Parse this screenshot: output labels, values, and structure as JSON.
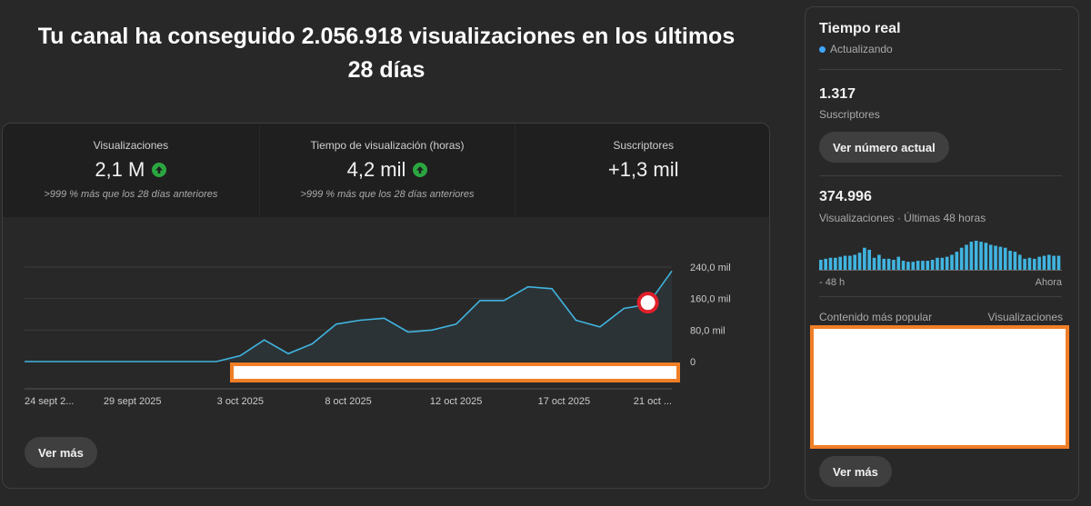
{
  "headline": "Tu canal ha conseguido 2.056.918 visualizaciones en los últimos 28 días",
  "metrics": [
    {
      "label": "Visualizaciones",
      "value": "2,1 M",
      "up": true,
      "sub": ">999 % más que los 28 días anteriores"
    },
    {
      "label": "Tiempo de visualización (horas)",
      "value": "4,2 mil",
      "up": true,
      "sub": ">999 % más que los 28 días anteriores"
    },
    {
      "label": "Suscriptores",
      "value": "+1,3 mil",
      "up": false,
      "sub": ""
    }
  ],
  "chart_data": {
    "type": "area",
    "ylim": [
      0,
      240000
    ],
    "y_ticks": [
      {
        "value": 0,
        "label": "0"
      },
      {
        "value": 80000,
        "label": "80,0 mil"
      },
      {
        "value": 160000,
        "label": "160,0 mil"
      },
      {
        "value": 240000,
        "label": "240,0 mil"
      }
    ],
    "x_tick_labels": [
      "24 sept 2...",
      "29 sept 2025",
      "3 oct 2025",
      "8 oct 2025",
      "12 oct 2025",
      "17 oct 2025",
      "21 oct ..."
    ],
    "series": [
      {
        "values": [
          0,
          0,
          0,
          0,
          0,
          0,
          0,
          0,
          0,
          15000,
          55000,
          20000,
          45000,
          95000,
          105000,
          110000,
          75000,
          80000,
          95000,
          155000,
          155000,
          190000,
          185000,
          105000,
          88000,
          135000,
          145000,
          230000
        ]
      }
    ],
    "line_color": "#41b4e0",
    "fill_color": "#2b3437"
  },
  "main_card": {
    "more_label": "Ver más"
  },
  "realtime": {
    "title": "Tiempo real",
    "status": "Actualizando",
    "subscribers_value": "1.317",
    "subscribers_label": "Suscriptores",
    "see_current_label": "Ver número actual",
    "views_value": "374.996",
    "views_label": "Visualizaciones · Últimas 48 horas",
    "bars": [
      10,
      11,
      12,
      12,
      13,
      14,
      14,
      15,
      17,
      22,
      20,
      12,
      15,
      11,
      11,
      10,
      13,
      9,
      8,
      8,
      9,
      9,
      9,
      10,
      12,
      12,
      13,
      15,
      18,
      22,
      25,
      28,
      29,
      28,
      27,
      25,
      24,
      23,
      22,
      19,
      18,
      15,
      11,
      12,
      11,
      13,
      14,
      15,
      14,
      14
    ],
    "bar_color": "#41b4e0",
    "x_start_label": "- 48 h",
    "x_end_label": "Ahora",
    "popular_label": "Contenido más popular",
    "popular_metric_label": "Visualizaciones",
    "more_label": "Ver más"
  }
}
